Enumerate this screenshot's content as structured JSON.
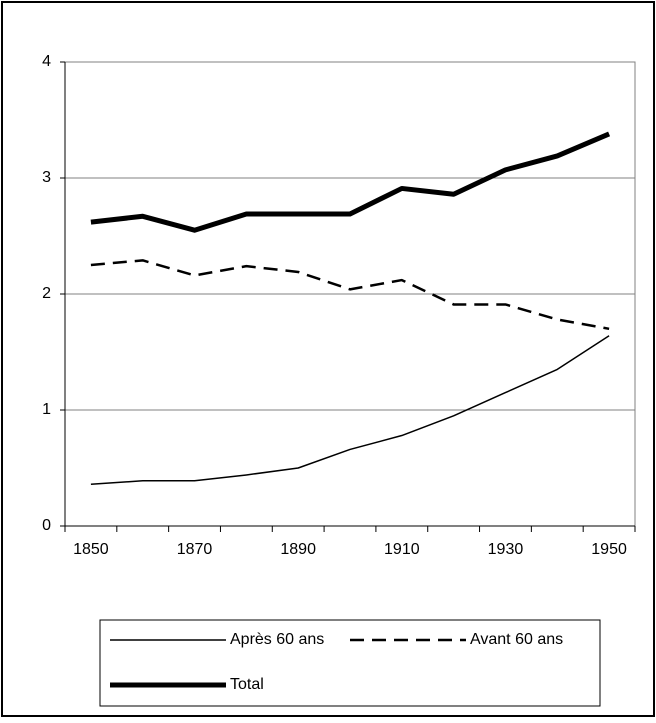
{
  "chart_data": {
    "type": "line",
    "categories": [
      1850,
      null,
      1870,
      null,
      1890,
      null,
      1910,
      null,
      1930,
      null,
      1950
    ],
    "series": [
      {
        "name": "Après 60 ans",
        "color": "#000000",
        "style": "thin",
        "values": [
          0.36,
          0.39,
          0.39,
          0.44,
          0.5,
          0.66,
          0.78,
          0.95,
          1.15,
          1.35,
          1.64
        ]
      },
      {
        "name": "Avant 60 ans",
        "color": "#000000",
        "style": "dashed",
        "values": [
          2.25,
          2.29,
          2.16,
          2.24,
          2.19,
          2.04,
          2.12,
          1.91,
          1.91,
          1.78,
          1.7
        ]
      },
      {
        "name": "Total",
        "color": "#000000",
        "style": "thick",
        "values": [
          2.62,
          2.67,
          2.55,
          2.69,
          2.69,
          2.69,
          2.91,
          2.86,
          3.07,
          3.19,
          3.38
        ]
      }
    ],
    "ylim": [
      0,
      4
    ],
    "yticks": [
      0,
      1,
      2,
      3,
      4
    ],
    "grid": true,
    "legend": "bottom"
  }
}
